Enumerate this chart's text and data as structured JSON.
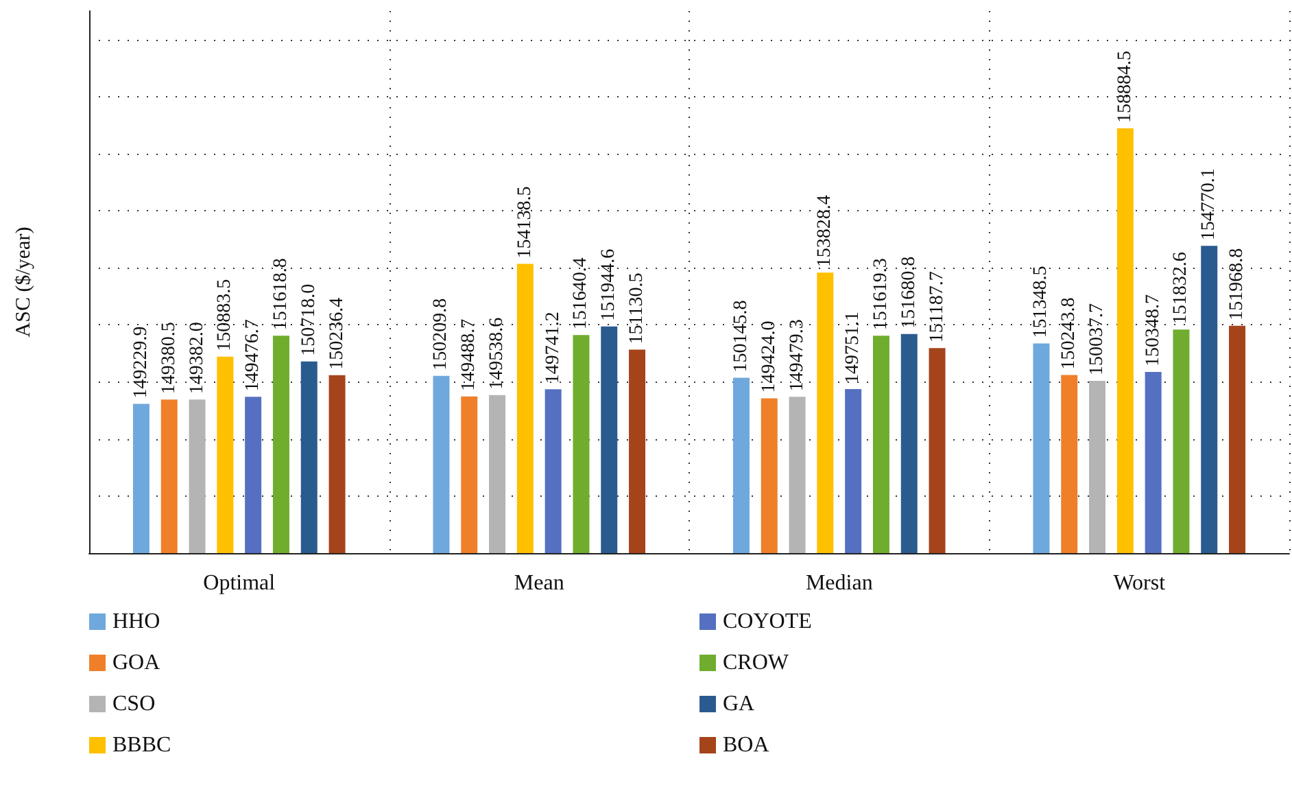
{
  "chart_data": {
    "type": "bar",
    "ylabel": "ASC ($/year)",
    "categories": [
      "Optimal",
      "Mean",
      "Median",
      "Worst"
    ],
    "series": [
      {
        "name": "HHO",
        "color": "#6fa8dc",
        "values": [
          149229.9,
          150209.8,
          150145.8,
          151348.5
        ],
        "value_labels": [
          "149229.9",
          "150209.8",
          "150145.8",
          "151348.5"
        ]
      },
      {
        "name": "GOA",
        "color": "#f07f2a",
        "values": [
          149380.5,
          149488.7,
          149424.0,
          150243.8
        ],
        "value_labels": [
          "149380.5",
          "149488.7",
          "149424.0",
          "150243.8"
        ]
      },
      {
        "name": "CSO",
        "color": "#b4b4b4",
        "values": [
          149382.0,
          149538.6,
          149479.3,
          150037.7
        ],
        "value_labels": [
          "149382.0",
          "149538.6",
          "149479.3",
          "150037.7"
        ]
      },
      {
        "name": "BBBC",
        "color": "#ffc000",
        "values": [
          150883.5,
          154138.5,
          153828.4,
          158884.5
        ],
        "value_labels": [
          "150883.5",
          "154138.5",
          "153828.4",
          "158884.5"
        ]
      },
      {
        "name": "COYOTE",
        "color": "#5570c0",
        "values": [
          149476.7,
          149741.2,
          149751.1,
          150348.7
        ],
        "value_labels": [
          "149476.7",
          "149741.2",
          "149751.1",
          "150348.7"
        ]
      },
      {
        "name": "CROW",
        "color": "#70ad2e",
        "values": [
          151618.8,
          151640.4,
          151619.3,
          151832.6
        ],
        "value_labels": [
          "151618.8",
          "151640.4",
          "151619.3",
          "151832.6"
        ]
      },
      {
        "name": "GA",
        "color": "#2a5b8f",
        "values": [
          150718.0,
          151944.6,
          151680.8,
          154770.1
        ],
        "value_labels": [
          "150718.0",
          "151944.6",
          "151680.8",
          "154770.1"
        ]
      },
      {
        "name": "BOA",
        "color": "#a5441b",
        "values": [
          150236.4,
          151130.5,
          151187.7,
          151968.8
        ],
        "value_labels": [
          "150236.4",
          "151130.5",
          "151187.7",
          "151968.8"
        ]
      }
    ],
    "ylim": [
      144000,
      163000
    ],
    "yticks": [
      {
        "value": 146000,
        "label": null
      },
      {
        "value": 148000,
        "label": null
      },
      {
        "value": 150000,
        "label": null
      },
      {
        "value": 152000,
        "label": null
      },
      {
        "value": 154000,
        "label": null
      },
      {
        "value": 156000,
        "label": null
      },
      {
        "value": 158000,
        "label": null
      },
      {
        "value": 160000,
        "label": null
      },
      {
        "value": 162000,
        "label": null
      }
    ],
    "tick_labels": "x",
    "grid": true,
    "legend": "bottom"
  }
}
